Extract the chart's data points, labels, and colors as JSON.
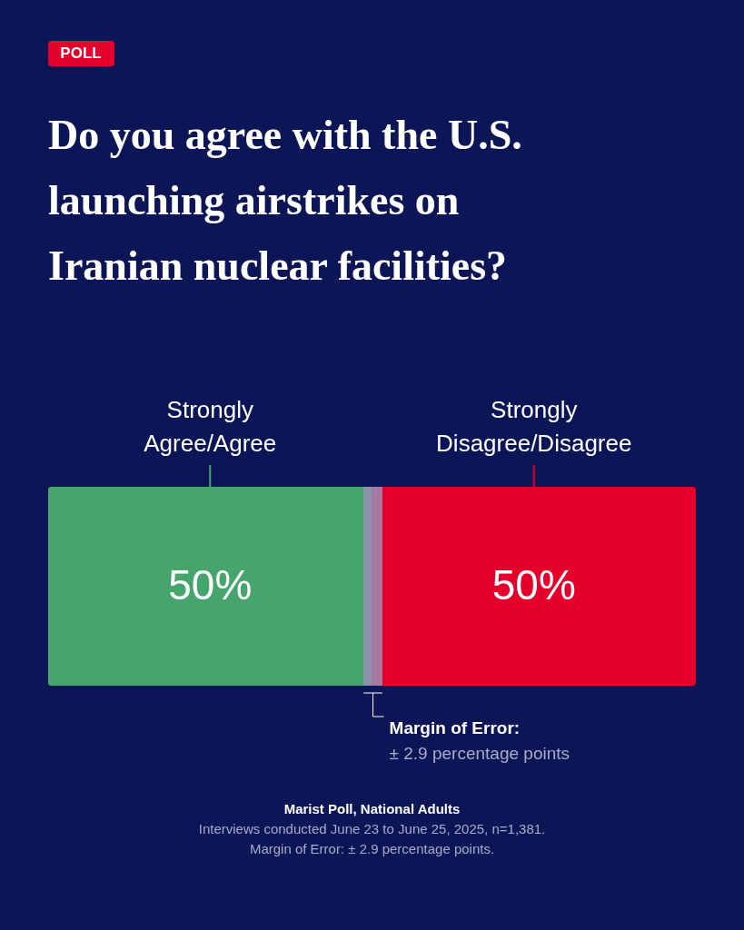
{
  "chart_data": {
    "type": "bar",
    "orientation": "horizontal",
    "stacked": true,
    "legend": false,
    "title": "Do you agree with the U.S. launching airstrikes on Iranian nuclear facilities?",
    "categories": [
      null
    ],
    "xlim": [
      0,
      100
    ],
    "series": [
      {
        "name": "Strongly Agree/Agree",
        "color": "#46a56d",
        "values": [
          50
        ],
        "value_labels": [
          "50%"
        ]
      },
      {
        "name": "Strongly Disagree/Disagree",
        "color": "#e4002b",
        "values": [
          50
        ],
        "value_labels": [
          "50%"
        ]
      }
    ],
    "bands": [
      {
        "axis": "x",
        "from": 48.7,
        "to": 51.6,
        "label": "Margin of Error:",
        "color": "#9a8fb8"
      }
    ],
    "annotations": [
      "POLL",
      "± 2.9 percentage points",
      "Marist Poll, National Adults",
      "Interviews conducted June 23 to June 25, 2025, n=1,381.",
      "Margin of Error: ± 2.9 percentage points."
    ]
  }
}
